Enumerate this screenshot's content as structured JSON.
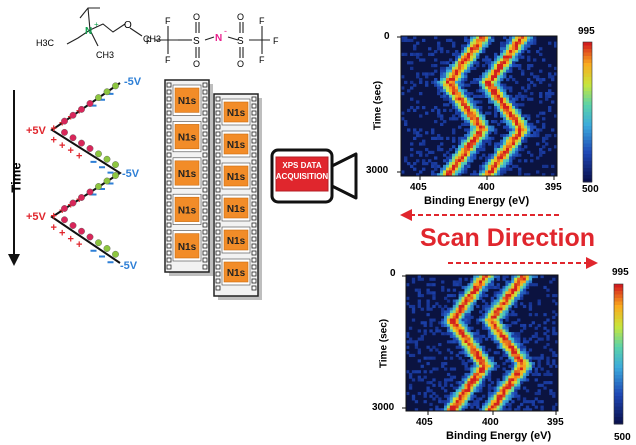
{
  "molecules": {
    "cation": {
      "h3c_left": "H3C",
      "ch3_right": "CH3",
      "ch3_bottom": "CH3",
      "nitrogen": "N",
      "nitrogen_charge": "+",
      "oxygen": "O"
    },
    "anion": {
      "f_left": "F",
      "f_top1": "F",
      "f_bot1": "F",
      "f_top2": "F",
      "f_bot2": "F",
      "f_right": "F",
      "sulfur": "S",
      "oxygen": "O",
      "nitrogen": "N",
      "nitrogen_charge": "-"
    }
  },
  "time_axis": {
    "label": "Time"
  },
  "voltages": {
    "neg_1": "-5V",
    "pos_1": "+5V",
    "neg_2": "-5V",
    "pos_2": "+5V",
    "neg_3": "-5V"
  },
  "film_strips": {
    "left_frames": [
      "N1s",
      "N1s",
      "N1s",
      "N1s",
      "N1s"
    ],
    "right_frames": [
      "N1s",
      "N1s",
      "N1s",
      "N1s",
      "N1s",
      "N1s"
    ]
  },
  "camera": {
    "label_line1": "XPS DATA",
    "label_line2": "ACQUISITION"
  },
  "scan_direction": {
    "label": "Scan Direction"
  },
  "plots": {
    "top": {
      "ylabel": "Time (sec)",
      "xlabel": "Binding Energy (eV)",
      "y_ticks": [
        "0",
        "3000"
      ],
      "x_ticks": [
        "405",
        "400",
        "395"
      ],
      "colorbar": {
        "max": "995",
        "min": "500"
      }
    },
    "bottom": {
      "ylabel": "Time (sec)",
      "xlabel": "Binding Energy (eV)",
      "y_ticks": [
        "0",
        "3000"
      ],
      "x_ticks": [
        "405",
        "400",
        "395"
      ],
      "colorbar": {
        "max": "995",
        "min": "500"
      }
    }
  },
  "colors": {
    "red": "#e0262d",
    "blue": "#2e7fd6",
    "orange": "#f28c28",
    "pink": "#e91e8c",
    "green_ball": "#8dc63f",
    "red_ball": "#d9265a"
  }
}
